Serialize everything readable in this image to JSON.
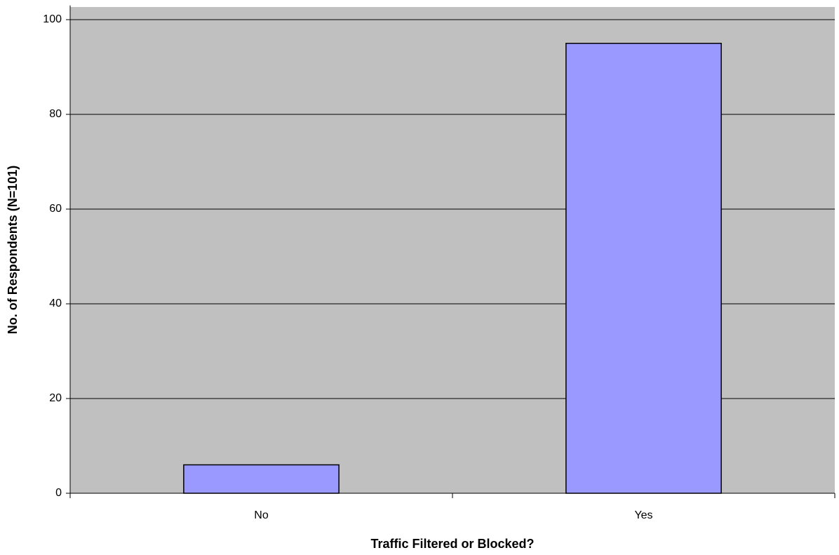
{
  "chart_data": {
    "type": "bar",
    "x_label": "Traffic Filtered or Blocked?",
    "y_label": "No. of Respondents (N=101)",
    "categories": [
      "No",
      "Yes"
    ],
    "values": [
      6,
      95
    ],
    "color": "#9999ff",
    "ylim": [
      0,
      103
    ],
    "yticks": [
      0,
      20,
      40,
      60,
      80,
      100
    ],
    "grid": true
  }
}
